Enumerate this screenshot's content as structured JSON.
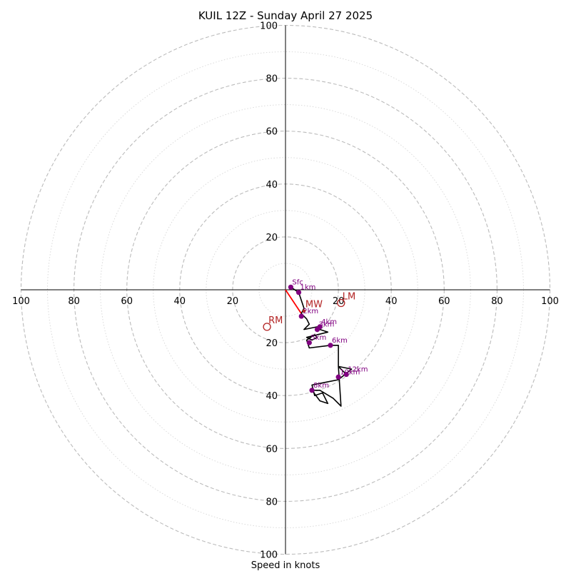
{
  "chart_data": {
    "type": "scatter",
    "subtype": "hodograph",
    "title": "KUIL 12Z - Sunday April 27 2025",
    "xlabel": "Speed in knots",
    "ylabel": "",
    "xlim": [
      -100,
      100
    ],
    "ylim": [
      -100,
      100
    ],
    "grid": true,
    "ring_values": [
      10,
      20,
      30,
      40,
      50,
      60,
      70,
      80,
      90,
      100
    ],
    "major_rings": [
      20,
      40,
      60,
      80,
      100
    ],
    "tick_labels": {
      "x_left": [
        "100",
        "80",
        "60",
        "40",
        "20"
      ],
      "x_right": [
        "20",
        "40",
        "60",
        "80",
        "100"
      ],
      "x_left_values": [
        -100,
        -80,
        -60,
        -40,
        -20
      ],
      "x_right_values": [
        20,
        40,
        60,
        80,
        100
      ],
      "y_top": [
        "100",
        "80",
        "60",
        "40",
        "20"
      ],
      "y_bottom": [
        "20",
        "40",
        "60",
        "80",
        "100"
      ],
      "y_top_values": [
        100,
        80,
        60,
        40,
        20
      ],
      "y_bottom_values": [
        -20,
        -40,
        -60,
        -80,
        -100
      ]
    },
    "colors": {
      "trace": "#000000",
      "points": "#800080",
      "markers": "#b22222",
      "mean_wind_line": "#ff0000",
      "grid": "#bbbbbb",
      "axes": "#000000"
    },
    "trace": [
      [
        2,
        1
      ],
      [
        5,
        -1
      ],
      [
        6,
        -4
      ],
      [
        7,
        -7
      ],
      [
        6,
        -9
      ],
      [
        8,
        -11
      ],
      [
        9,
        -13
      ],
      [
        7,
        -15
      ],
      [
        12,
        -14
      ],
      [
        13,
        -15
      ],
      [
        16,
        -16
      ],
      [
        8,
        -18
      ],
      [
        10,
        -19
      ],
      [
        12,
        -18
      ],
      [
        11,
        -17
      ],
      [
        8,
        -19
      ],
      [
        9,
        -22
      ],
      [
        17,
        -21
      ],
      [
        20,
        -21
      ],
      [
        20,
        -29
      ],
      [
        25,
        -30
      ],
      [
        20,
        -34
      ],
      [
        15,
        -35
      ],
      [
        10,
        -36
      ],
      [
        11,
        -40
      ],
      [
        14,
        -39
      ],
      [
        16,
        -43
      ],
      [
        13,
        -42
      ],
      [
        10,
        -38
      ],
      [
        13,
        -38
      ],
      [
        18,
        -41
      ],
      [
        21,
        -44
      ],
      [
        20,
        -29
      ],
      [
        23,
        -32
      ]
    ],
    "points": [
      {
        "label": "Sfc",
        "x": 2,
        "y": 1
      },
      {
        "label": "1km",
        "x": 5,
        "y": -1
      },
      {
        "label": "2km",
        "x": 6,
        "y": -10
      },
      {
        "label": "3km",
        "x": 12,
        "y": -15
      },
      {
        "label": "4km",
        "x": 13,
        "y": -14
      },
      {
        "label": "5km",
        "x": 9,
        "y": -20
      },
      {
        "label": "6km",
        "x": 17,
        "y": -21
      },
      {
        "label": "8km",
        "x": 10,
        "y": -38
      },
      {
        "label": "10km",
        "x": 20,
        "y": -33
      },
      {
        "label": "12km",
        "x": 23,
        "y": -32
      }
    ],
    "mean_wind_line": [
      [
        0,
        0
      ],
      [
        6,
        -9
      ]
    ],
    "markers": [
      {
        "label": "MW",
        "x": 7,
        "y": -8
      },
      {
        "label": "LM",
        "x": 21,
        "y": -5
      },
      {
        "label": "RM",
        "x": -7,
        "y": -14
      }
    ]
  }
}
